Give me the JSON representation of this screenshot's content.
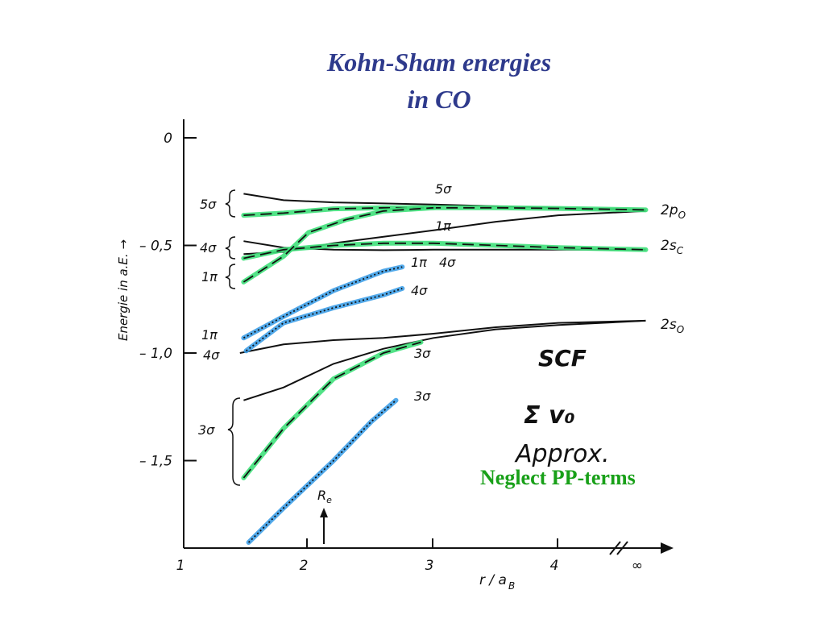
{
  "title": {
    "line1": "Kohn-Sham energies",
    "line2": "in CO"
  },
  "annotation": {
    "neglect": "Neglect PP-terms"
  },
  "legend": {
    "scf": "SCF",
    "sum": "Σ v₀",
    "approx": "Approx."
  },
  "colors": {
    "title": "#2e3a8c",
    "scf": "#111111",
    "sum_v0": "#3fa0e8",
    "approx": "#3fe07a",
    "neglect_text": "#18a018"
  },
  "chart_data": {
    "type": "line",
    "xlabel": "r / a_B",
    "ylabel": "Energie in a.E. →",
    "xlim": [
      1,
      4.8
    ],
    "ylim": [
      -1.85,
      0.05
    ],
    "x_ticks": [
      "1",
      "2",
      "3",
      "4",
      "∞"
    ],
    "y_ticks": [
      "0",
      "– 0,5",
      "– 1,0",
      "– 1,5"
    ],
    "marker": {
      "label": "R_e",
      "x": 2.13
    },
    "series": [
      {
        "style": "scf",
        "x": [
          1.48,
          1.8,
          2.2,
          2.6,
          3.0,
          3.5,
          4.0,
          4.7
        ],
        "y": [
          -0.26,
          -0.29,
          -0.3,
          -0.305,
          -0.31,
          -0.318,
          -0.325,
          -0.335
        ]
      },
      {
        "style": "scf",
        "x": [
          1.48,
          1.8,
          2.2,
          2.6,
          3.0,
          3.5,
          4.0,
          4.7
        ],
        "y": [
          -0.48,
          -0.51,
          -0.52,
          -0.522,
          -0.52,
          -0.52,
          -0.52,
          -0.52
        ]
      },
      {
        "style": "scf",
        "x": [
          1.48,
          1.8,
          2.2,
          2.6,
          3.0,
          3.5,
          4.0,
          4.7
        ],
        "y": [
          -0.54,
          -0.53,
          -0.49,
          -0.46,
          -0.43,
          -0.39,
          -0.36,
          -0.34
        ]
      },
      {
        "style": "scf",
        "x": [
          1.45,
          1.8,
          2.2,
          2.6,
          3.0,
          3.5,
          4.0,
          4.7
        ],
        "y": [
          -1.0,
          -0.96,
          -0.94,
          -0.93,
          -0.91,
          -0.88,
          -0.86,
          -0.85
        ]
      },
      {
        "style": "scf",
        "x": [
          1.48,
          1.8,
          2.2,
          2.6,
          3.0,
          3.5,
          4.0,
          4.7
        ],
        "y": [
          -1.22,
          -1.16,
          -1.05,
          -0.98,
          -0.93,
          -0.89,
          -0.87,
          -0.85
        ]
      },
      {
        "style": "approx",
        "x": [
          1.48,
          1.8,
          2.2,
          2.6,
          3.0,
          3.5,
          4.0,
          4.7
        ],
        "y": [
          -0.36,
          -0.35,
          -0.33,
          -0.325,
          -0.325,
          -0.325,
          -0.328,
          -0.335
        ]
      },
      {
        "style": "approx",
        "x": [
          1.48,
          1.8,
          2.2,
          2.6,
          3.0,
          3.5,
          4.0,
          4.7
        ],
        "y": [
          -0.56,
          -0.52,
          -0.5,
          -0.49,
          -0.49,
          -0.5,
          -0.51,
          -0.52
        ]
      },
      {
        "style": "approx",
        "x": [
          1.48,
          1.8,
          2.0,
          2.3,
          2.6,
          3.0
        ],
        "y": [
          -0.67,
          -0.55,
          -0.44,
          -0.38,
          -0.34,
          -0.325
        ]
      },
      {
        "style": "approx",
        "x": [
          1.48,
          1.8,
          2.2,
          2.6,
          2.9
        ],
        "y": [
          -1.58,
          -1.35,
          -1.12,
          -1.0,
          -0.95
        ]
      },
      {
        "style": "sum_v0",
        "x": [
          1.48,
          1.8,
          2.2,
          2.6,
          2.75
        ],
        "y": [
          -0.93,
          -0.83,
          -0.71,
          -0.62,
          -0.6
        ]
      },
      {
        "style": "sum_v0",
        "x": [
          1.5,
          1.8,
          2.2,
          2.6,
          2.75
        ],
        "y": [
          -0.99,
          -0.86,
          -0.79,
          -0.73,
          -0.7
        ]
      },
      {
        "style": "sum_v0",
        "x": [
          1.52,
          1.8,
          2.2,
          2.5,
          2.7
        ],
        "y": [
          -1.88,
          -1.72,
          -1.5,
          -1.32,
          -1.22
        ]
      }
    ],
    "left_labels": [
      "5σ",
      "4σ",
      "1π",
      "1π",
      "4σ",
      "3σ"
    ],
    "right_labels": [
      "2p_O",
      "2s_C",
      "2s_O"
    ],
    "mid_labels": [
      "5σ",
      "1π",
      "1π",
      "4σ",
      "4σ",
      "3σ",
      "3σ"
    ]
  }
}
